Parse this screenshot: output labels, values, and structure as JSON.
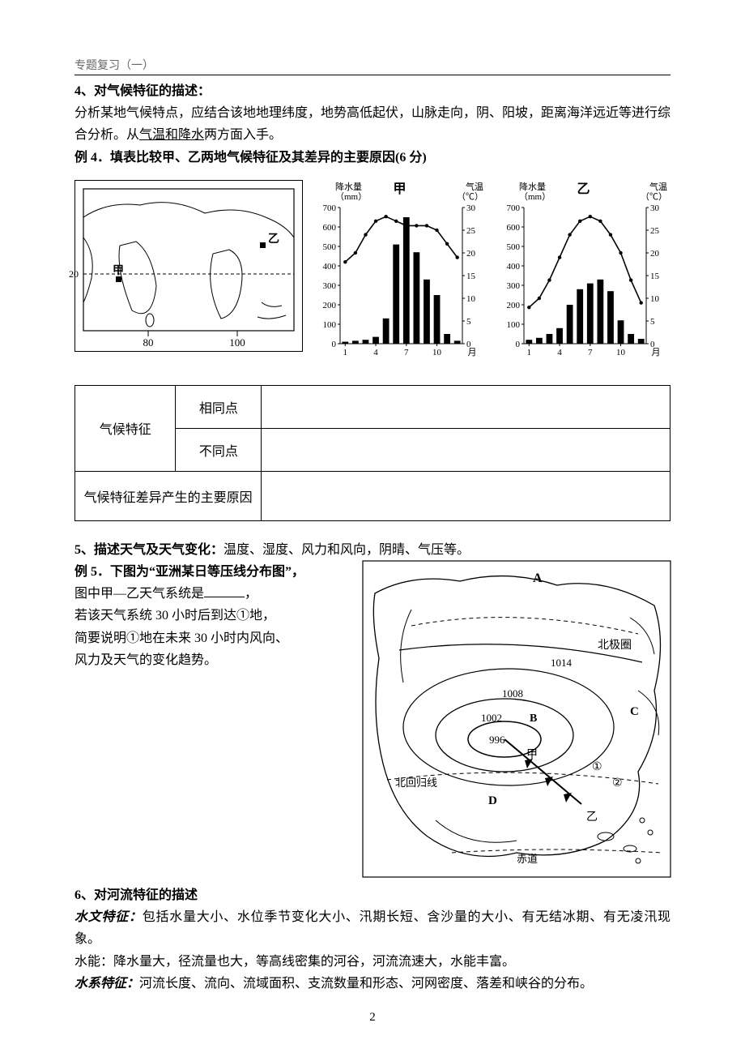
{
  "header": {
    "small": "专题复习（一）"
  },
  "section4": {
    "title": "4、对气候特征的描述：",
    "para": "分析某地气候特点，应结合该地地理纬度，地势高低起伏，山脉走向，阴、阳坡，距离海洋远近等进行综合分析。从",
    "underline": "气温和降水",
    "para_after": "两方面入手。",
    "example": "例 4．填表比较甲、乙两地气候特征及其差异的主要原因(6 分)"
  },
  "map1": {
    "labels": {
      "jia": "甲",
      "yi": "乙",
      "lon80": "80",
      "lon100": "100",
      "lat20": "20"
    }
  },
  "chart_jia": {
    "title": "甲",
    "left_label": "降水量",
    "left_unit": "（mm）",
    "right_label": "气温",
    "right_unit": "（℃）",
    "y_left": {
      "min": 0,
      "max": 700,
      "step": 100
    },
    "y_right": {
      "min": 0,
      "max": 30,
      "step": 5
    },
    "x_ticks": [
      "1",
      "4",
      "7",
      "10",
      "月"
    ],
    "precip": [
      10,
      15,
      20,
      35,
      130,
      510,
      650,
      470,
      330,
      250,
      50,
      15
    ],
    "temp": [
      18,
      20,
      24,
      27,
      28,
      27,
      26,
      26,
      26,
      25,
      22,
      19
    ],
    "bar_color": "#000000",
    "line_color": "#000000",
    "background_color": "#ffffff",
    "axis_font": 11
  },
  "chart_yi": {
    "title": "乙",
    "left_label": "降水量",
    "left_unit": "（mm）",
    "right_label": "气温",
    "right_unit": "（℃）",
    "y_left": {
      "min": 0,
      "max": 700,
      "step": 100
    },
    "y_right": {
      "min": 0,
      "max": 30,
      "step": 5
    },
    "x_ticks": [
      "1",
      "4",
      "7",
      "10",
      "月"
    ],
    "precip": [
      20,
      30,
      50,
      80,
      200,
      280,
      310,
      330,
      270,
      120,
      50,
      25
    ],
    "temp": [
      8,
      10,
      14,
      19,
      24,
      27,
      28,
      27,
      24,
      20,
      14,
      9
    ],
    "bar_color": "#000000",
    "line_color": "#000000",
    "background_color": "#ffffff",
    "axis_font": 11
  },
  "table": {
    "r1c1": "气候特征",
    "r1c2a": "相同点",
    "r1c2b": "不同点",
    "r2": "气候特征差异产生的主要原因"
  },
  "section5": {
    "title": "5、描述天气及天气变化：",
    "rest": "温度、湿度、风力和风向，阴晴、气压等。",
    "ex_label": "例 5．下图为“亚洲某日等压线分布图”，",
    "line2a": "图中甲—乙天气系统是",
    "line2b": "，",
    "line3": "若该天气系统 30 小时后到达①地，",
    "line4": "简要说明①地在未来 30 小时内风向、",
    "line5": "风力及天气的变化趋势。"
  },
  "map2": {
    "labels": {
      "A": "A",
      "B": "B",
      "C": "C",
      "D": "D",
      "arctic": "北极圈",
      "tropic": "北回归线",
      "equator": "赤道",
      "p996": "996",
      "p1002": "1002",
      "p1008": "1008",
      "p1014": "1014",
      "jia": "甲",
      "yi": "乙",
      "one": "①",
      "two": "②"
    }
  },
  "section6": {
    "title": "6、对河流特征的描述",
    "hydro_label": "水文特征：",
    "hydro_text": "包括水量大小、水位季节变化大小、汛期长短、含沙量的大小、有无结冰期、有无凌汛现象。",
    "power": "水能：降水量大，径流量也大，等高线密集的河谷，河流流速大，水能丰富。",
    "system_label": "水系特征：",
    "system_text": "河流长度、流向、流域面积、支流数量和形态、河网密度、落差和峡谷的分布。"
  },
  "footer": {
    "page": "2"
  }
}
